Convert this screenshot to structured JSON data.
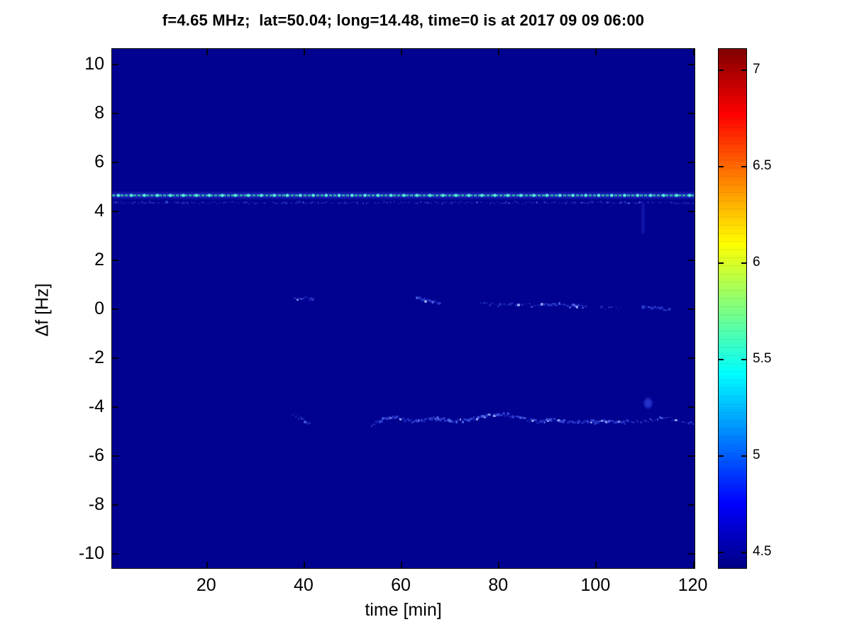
{
  "chart_data": {
    "type": "heatmap",
    "title": "f=4.65 MHz;  lat=50.04; long=14.48, time=0 is at 2017 09 09 06:00",
    "xlabel": "time [min]",
    "ylabel": "Δf [Hz]",
    "xlim": [
      0.5,
      120.5
    ],
    "ylim": [
      -10.65,
      10.65
    ],
    "xticks": [
      20,
      40,
      60,
      80,
      100,
      120
    ],
    "yticks": [
      10,
      8,
      6,
      4,
      2,
      0,
      -2,
      -4,
      -6,
      -8,
      -10
    ],
    "grid": false,
    "legend": "none",
    "background_color": "#020290",
    "colormap": "jet",
    "colorbar": {
      "position": "right",
      "ticks": [
        4.5,
        5,
        5.5,
        6,
        6.5,
        7
      ],
      "vmin": 4.41,
      "vmax": 7.11,
      "gradient": [
        {
          "stop": 0.0,
          "color": "#000084"
        },
        {
          "stop": 0.125,
          "color": "#0000FF"
        },
        {
          "stop": 0.375,
          "color": "#00FFFF"
        },
        {
          "stop": 0.625,
          "color": "#FFFF00"
        },
        {
          "stop": 0.875,
          "color": "#FF0000"
        },
        {
          "stop": 1.0,
          "color": "#800000"
        }
      ]
    },
    "features": [
      {
        "kind": "dashed-line",
        "name": "carrier-echo-line",
        "f": 4.67,
        "t0": 0.5,
        "t1": 120.5,
        "approx_value": 5.6,
        "band_color": "rgba(50,70,215,0.45)",
        "dash_color": "#2E9EAE",
        "gap_color": "rgba(30,60,190,0.85)",
        "dot_color": "#58E8DC"
      },
      {
        "kind": "speckle-path",
        "name": "carrier-shadow-speckle",
        "approx_value": 4.7,
        "path": [
          [
            0.5,
            4.36
          ],
          [
            120.5,
            4.36
          ]
        ],
        "density": 2.0,
        "intensity": 0.28,
        "size": 2.2,
        "jitter": 0.07,
        "palette": [
          "#1828BE",
          "#2638CC",
          "#3246D2",
          "#3C52DA"
        ]
      },
      {
        "kind": "vstreak",
        "name": "vertical-smear",
        "t": 109.7,
        "f0": 3.1,
        "f1": 4.35,
        "width": 3,
        "color": "rgba(24,34,182,0.9)"
      },
      {
        "kind": "speckle-path",
        "name": "near-zero-trace-a",
        "approx_value": 4.9,
        "path": [
          [
            37.8,
            0.44
          ],
          [
            40.0,
            0.46
          ],
          [
            42.2,
            0.38
          ]
        ],
        "density": 3.2,
        "intensity": 0.55,
        "size": 2.6
      },
      {
        "kind": "speckle-path",
        "name": "near-zero-trace-b",
        "approx_value": 5.0,
        "path": [
          [
            63.0,
            0.5
          ],
          [
            64.3,
            0.42
          ],
          [
            65.8,
            0.32
          ],
          [
            68.0,
            0.28
          ]
        ],
        "density": 3.4,
        "intensity": 0.7,
        "size": 2.8
      },
      {
        "kind": "speckle-path",
        "name": "near-zero-trace-c",
        "approx_value": 4.8,
        "path": [
          [
            76.3,
            0.22
          ],
          [
            80.0,
            0.17
          ],
          [
            84.0,
            0.2
          ],
          [
            88.3,
            0.14
          ]
        ],
        "density": 2.6,
        "intensity": 0.45,
        "size": 2.4
      },
      {
        "kind": "speckle-path",
        "name": "near-zero-trace-d",
        "approx_value": 4.9,
        "path": [
          [
            88.4,
            0.16
          ],
          [
            91.5,
            0.2
          ],
          [
            94.5,
            0.14
          ],
          [
            98.2,
            0.1
          ]
        ],
        "density": 3.2,
        "intensity": 0.6,
        "size": 2.6
      },
      {
        "kind": "speckle-path",
        "name": "near-zero-trace-e",
        "approx_value": 4.7,
        "path": [
          [
            100.8,
            0.06
          ],
          [
            105.2,
            0.02
          ]
        ],
        "density": 2.0,
        "intensity": 0.28,
        "size": 2.2
      },
      {
        "kind": "speckle-path",
        "name": "near-zero-trace-f",
        "approx_value": 4.9,
        "path": [
          [
            109.4,
            0.12
          ],
          [
            112.0,
            0.04
          ],
          [
            115.4,
            -0.02
          ]
        ],
        "density": 3.2,
        "intensity": 0.5,
        "size": 2.6
      },
      {
        "kind": "speckle-path",
        "name": "lower-trace-onset",
        "approx_value": 4.8,
        "path": [
          [
            37.4,
            -4.28
          ],
          [
            39.4,
            -4.5
          ],
          [
            41.4,
            -4.72
          ]
        ],
        "density": 3.0,
        "intensity": 0.4,
        "size": 2.4
      },
      {
        "kind": "speckle-path",
        "name": "lower-trace-main",
        "approx_value": 5.1,
        "path": [
          [
            53.8,
            -4.8
          ],
          [
            55.2,
            -4.62
          ],
          [
            56.8,
            -4.48
          ],
          [
            58.6,
            -4.42
          ],
          [
            60.4,
            -4.5
          ],
          [
            62.2,
            -4.6
          ],
          [
            64.2,
            -4.55
          ],
          [
            66.2,
            -4.45
          ],
          [
            68.2,
            -4.5
          ],
          [
            70.4,
            -4.6
          ],
          [
            72.6,
            -4.56
          ],
          [
            74.6,
            -4.48
          ],
          [
            76.6,
            -4.4
          ],
          [
            78.6,
            -4.32
          ],
          [
            80.8,
            -4.3
          ],
          [
            82.8,
            -4.36
          ],
          [
            84.8,
            -4.46
          ],
          [
            86.8,
            -4.56
          ],
          [
            89.0,
            -4.6
          ],
          [
            91.2,
            -4.52
          ],
          [
            93.4,
            -4.58
          ],
          [
            95.6,
            -4.64
          ],
          [
            98.0,
            -4.6
          ],
          [
            100.4,
            -4.62
          ],
          [
            102.8,
            -4.58
          ],
          [
            105.8,
            -4.6
          ]
        ],
        "density": 3.4,
        "intensity": 0.85,
        "size": 2.8
      },
      {
        "kind": "speckle-path",
        "name": "lower-trace-tail",
        "approx_value": 4.9,
        "path": [
          [
            105.8,
            -4.62
          ],
          [
            109.0,
            -4.58
          ],
          [
            112.0,
            -4.52
          ],
          [
            114.6,
            -4.42
          ],
          [
            117.0,
            -4.56
          ],
          [
            120.2,
            -4.72
          ]
        ],
        "density": 2.6,
        "intensity": 0.5,
        "size": 2.4
      },
      {
        "kind": "blob",
        "name": "lower-offshoot-blob",
        "t": 110.6,
        "f": -3.85,
        "w": 2.2,
        "h": 0.55,
        "color": "rgba(40,55,210,0.9)"
      }
    ]
  }
}
